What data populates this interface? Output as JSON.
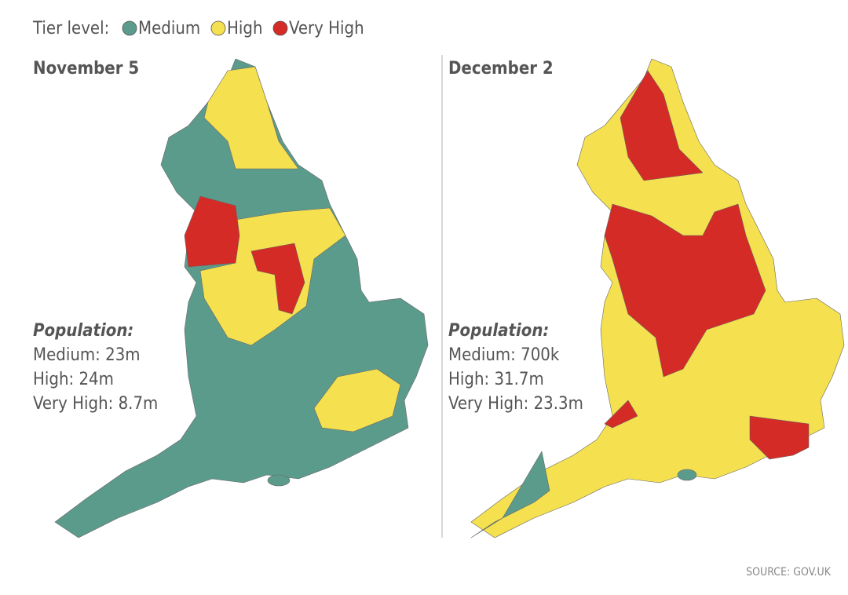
{
  "legend": {
    "title": "Tier level:",
    "items": [
      {
        "label": "Medium",
        "color": "#5b9b8c"
      },
      {
        "label": "High",
        "color": "#f5e04f"
      },
      {
        "label": "Very High",
        "color": "#d42b27"
      }
    ]
  },
  "panels": [
    {
      "title": "November 5",
      "population": {
        "heading": "Population:",
        "lines": [
          "Medium: 23m",
          "High: 24m",
          "Very High: 8.7m"
        ]
      }
    },
    {
      "title": "December 2",
      "population": {
        "heading": "Population:",
        "lines": [
          "Medium: 700k",
          "High: 31.7m",
          "Very High: 23.3m"
        ]
      }
    }
  ],
  "source": "SOURCE: GOV.UK"
}
